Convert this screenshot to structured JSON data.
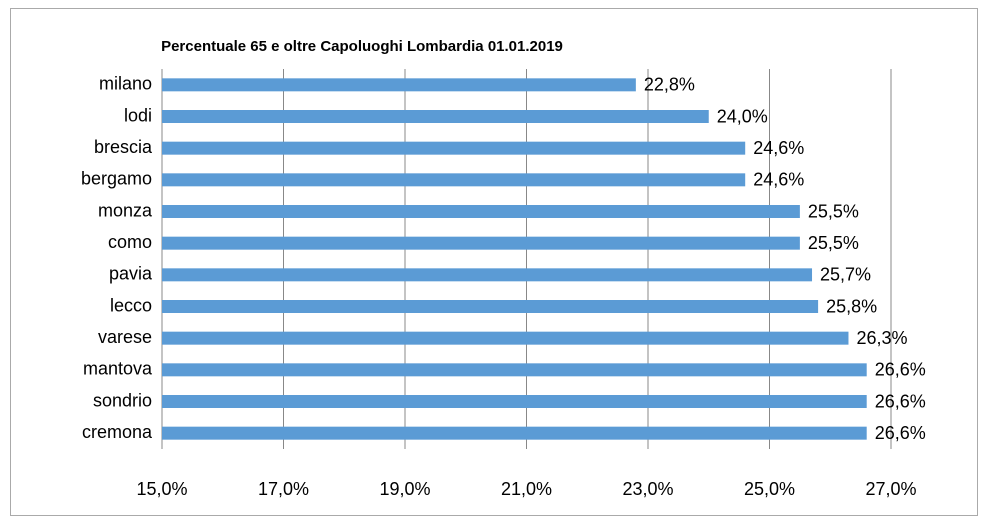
{
  "chart_data": {
    "type": "bar",
    "orientation": "horizontal",
    "title": "Percentuale 65 e oltre Capoluoghi Lombardia 01.01.2019",
    "categories": [
      "milano",
      "lodi",
      "brescia",
      "bergamo",
      "monza",
      "como",
      "pavia",
      "lecco",
      "varese",
      "mantova",
      "sondrio",
      "cremona"
    ],
    "values": [
      22.8,
      24.0,
      24.6,
      24.6,
      25.5,
      25.5,
      25.7,
      25.8,
      26.3,
      26.6,
      26.6,
      26.6
    ],
    "value_labels": [
      "22,8%",
      "24,0%",
      "24,6%",
      "24,6%",
      "25,5%",
      "25,5%",
      "25,7%",
      "25,8%",
      "26,3%",
      "26,6%",
      "26,6%",
      "26,6%"
    ],
    "color": "#5b9bd5",
    "xlim": [
      15,
      28
    ],
    "xticks": [
      {
        "value": 15,
        "label": "15,0%"
      },
      {
        "value": 17,
        "label": "17,0%"
      },
      {
        "value": 19,
        "label": "19,0%"
      },
      {
        "value": 21,
        "label": "21,0%"
      },
      {
        "value": 23,
        "label": "23,0%"
      },
      {
        "value": 25,
        "label": "25,0%"
      },
      {
        "value": 27,
        "label": "27,0%"
      }
    ],
    "grid": true
  }
}
